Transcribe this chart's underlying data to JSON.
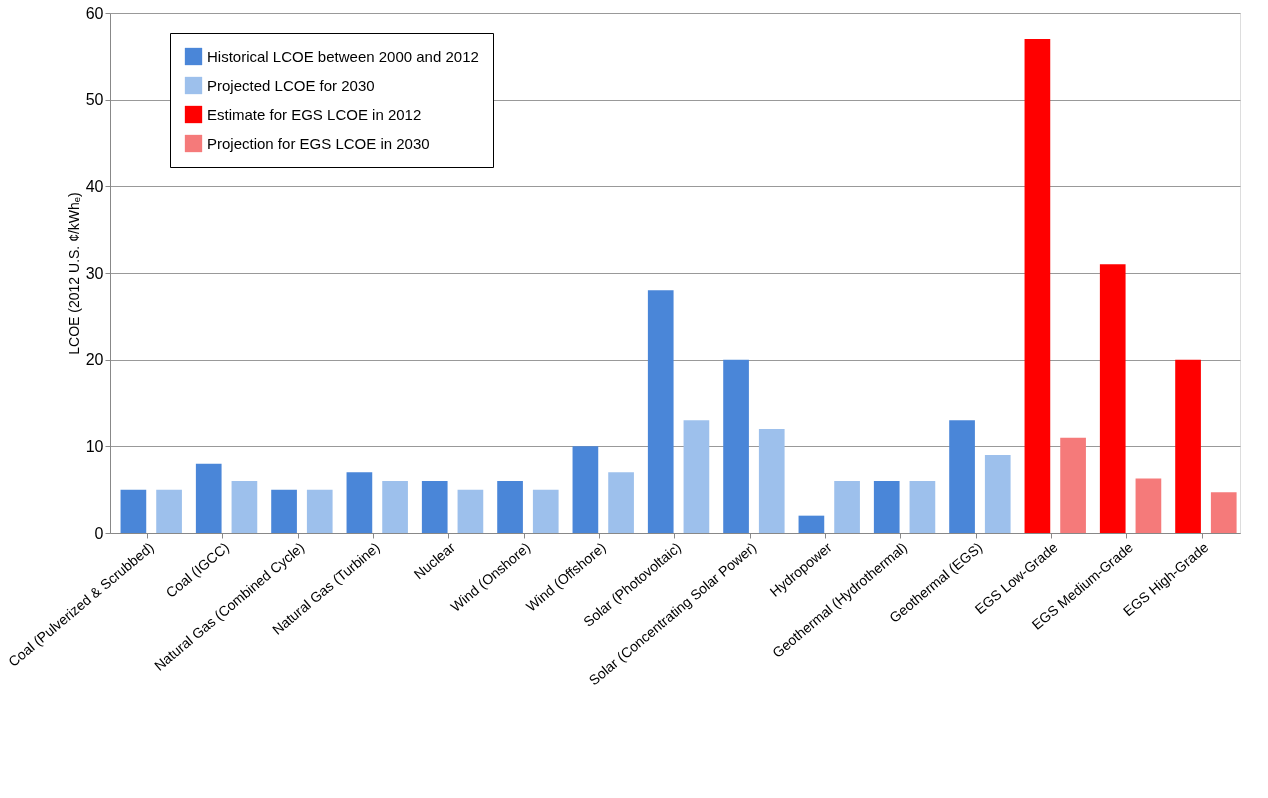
{
  "chart_data": {
    "type": "bar",
    "ylabel": "LCOE (2012 U.S. ¢/kWhₑ)",
    "categories": [
      "Coal (Pulverized & Scrubbed)",
      "Coal (IGCC)",
      "Natural Gas (Combined Cycle)",
      "Natural Gas (Turbine)",
      "Nuclear",
      "Wind (Onshore)",
      "Wind (Offshore)",
      "Solar (Photovoltaic)",
      "Solar (Concentrating Solar Power)",
      "Hydropower",
      "Geothermal (Hydrothermal)",
      "Geothermal (EGS)",
      "EGS Low-Grade",
      "EGS Medium-Grade",
      "EGS High-Grade"
    ],
    "series": [
      {
        "name": "Historical LCOE between 2000 and 2012",
        "color": "#4a86d8",
        "values": [
          5,
          8,
          5,
          7,
          6,
          6,
          10,
          28,
          20,
          2,
          6,
          13,
          null,
          null,
          null
        ]
      },
      {
        "name": "Projected LCOE for 2030",
        "color": "#9dc0ec",
        "values": [
          5,
          6,
          5,
          6,
          5,
          5,
          7,
          13,
          12,
          6,
          6,
          9,
          null,
          null,
          null
        ]
      },
      {
        "name": "Estimate for EGS LCOE in 2012",
        "color": "#ff0000",
        "values": [
          null,
          null,
          null,
          null,
          null,
          null,
          null,
          null,
          null,
          null,
          null,
          null,
          57,
          31,
          20
        ]
      },
      {
        "name": "Projection for EGS LCOE in 2030",
        "color": "#f57a7a",
        "values": [
          null,
          null,
          null,
          null,
          null,
          null,
          null,
          null,
          null,
          null,
          null,
          null,
          11,
          6.3,
          4.7
        ]
      }
    ],
    "ylim": [
      0,
      60
    ],
    "yticks": [
      0,
      10,
      20,
      30,
      40,
      50,
      60
    ],
    "grid": "y",
    "legend": "top left"
  }
}
